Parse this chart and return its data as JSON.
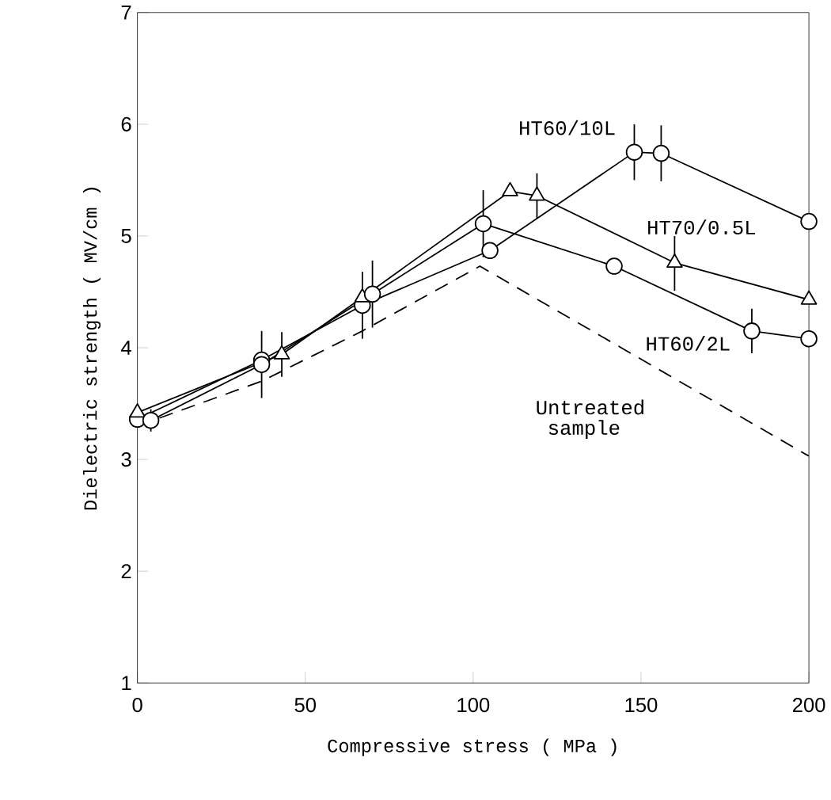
{
  "chart_data": {
    "type": "line",
    "xlabel": "Compressive  stress ( MPa )",
    "ylabel": "Dielectric  strength ( MV/cm )",
    "xlim": [
      0,
      200
    ],
    "ylim": [
      1,
      7
    ],
    "xticks": [
      0,
      50,
      100,
      150,
      200
    ],
    "yticks": [
      1,
      2,
      3,
      4,
      5,
      6,
      7
    ],
    "series": [
      {
        "name": "HT60/10L",
        "color": "#000000",
        "marker": "circle",
        "line_style": "solid",
        "x": [
          0,
          37,
          67,
          105,
          148,
          156,
          200
        ],
        "values": [
          3.36,
          3.89,
          4.38,
          4.87,
          5.75,
          5.74,
          5.13
        ],
        "errors": [
          null,
          null,
          0.3,
          null,
          0.25,
          0.25,
          null
        ]
      },
      {
        "name": "HT70/0.5L",
        "color": "#000000",
        "marker": "triangle",
        "line_style": "solid",
        "x": [
          0,
          43,
          67,
          111,
          119,
          160,
          200
        ],
        "values": [
          3.42,
          3.94,
          4.45,
          5.4,
          5.36,
          4.76,
          4.43
        ],
        "errors": [
          null,
          0.2,
          null,
          null,
          0.2,
          0.25,
          null
        ]
      },
      {
        "name": "HT60/2L",
        "color": "#000000",
        "marker": "circle",
        "line_style": "solid",
        "x": [
          4,
          37,
          70,
          103,
          142,
          183,
          200
        ],
        "values": [
          3.35,
          3.85,
          4.48,
          5.11,
          4.73,
          4.15,
          4.08
        ],
        "errors": [
          0.1,
          0.3,
          0.3,
          0.3,
          null,
          0.2,
          null
        ]
      },
      {
        "name": "Untreated sample",
        "color": "#000000",
        "marker": "none",
        "line_style": "dashed",
        "x": [
          0,
          37,
          67,
          102,
          200
        ],
        "values": [
          3.3,
          3.7,
          4.15,
          4.73,
          3.03
        ]
      }
    ]
  }
}
